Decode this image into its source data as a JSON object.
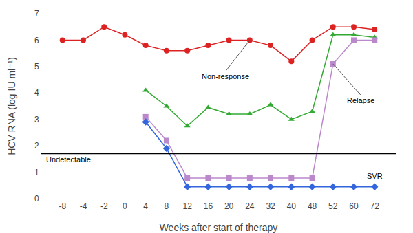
{
  "chart_data": {
    "type": "line",
    "xlabel": "Weeks after start of therapy",
    "ylabel": "HCV RNA (log IU ml⁻¹)",
    "categories": [
      "-8",
      "-4",
      "-2",
      "0",
      "4",
      "8",
      "12",
      "16",
      "20",
      "24",
      "32",
      "40",
      "48",
      "52",
      "60",
      "72"
    ],
    "series": [
      {
        "color": "#dd2222",
        "marker": "circle",
        "values": [
          6.0,
          6.0,
          6.5,
          6.2,
          5.8,
          5.6,
          5.6,
          5.8,
          6.0,
          6.0,
          5.8,
          5.2,
          6.0,
          6.5,
          6.5,
          6.4
        ]
      },
      {
        "color": "#33aa33",
        "marker": "triangle-up",
        "values": [
          null,
          null,
          null,
          null,
          4.1,
          3.5,
          2.75,
          3.45,
          3.2,
          3.2,
          3.55,
          3.0,
          3.3,
          6.2,
          6.2,
          6.1
        ]
      },
      {
        "color": "#bb88cc",
        "marker": "square",
        "values": [
          null,
          null,
          null,
          null,
          3.1,
          2.2,
          0.78,
          0.78,
          0.78,
          0.78,
          0.78,
          0.78,
          0.78,
          5.1,
          6.0,
          6.0
        ]
      },
      {
        "color": "#3366dd",
        "marker": "diamond",
        "values": [
          null,
          null,
          null,
          null,
          2.9,
          1.9,
          0.45,
          0.45,
          0.45,
          0.45,
          0.45,
          0.45,
          0.45,
          0.45,
          0.45,
          0.45
        ]
      }
    ],
    "reference_line": {
      "y": 1.7,
      "label": "Undetectable"
    },
    "annotations": [
      {
        "text": "Non-response",
        "x": "24",
        "y": 6.0
      },
      {
        "text": "Relapse",
        "x": "52",
        "y": 5.1
      },
      {
        "text": "SVR",
        "x": "72",
        "y": 0.45
      }
    ],
    "ylim": [
      0,
      7
    ],
    "yticks": [
      0,
      1,
      2,
      3,
      4,
      5,
      6,
      7
    ],
    "grid": false,
    "legend": false
  }
}
